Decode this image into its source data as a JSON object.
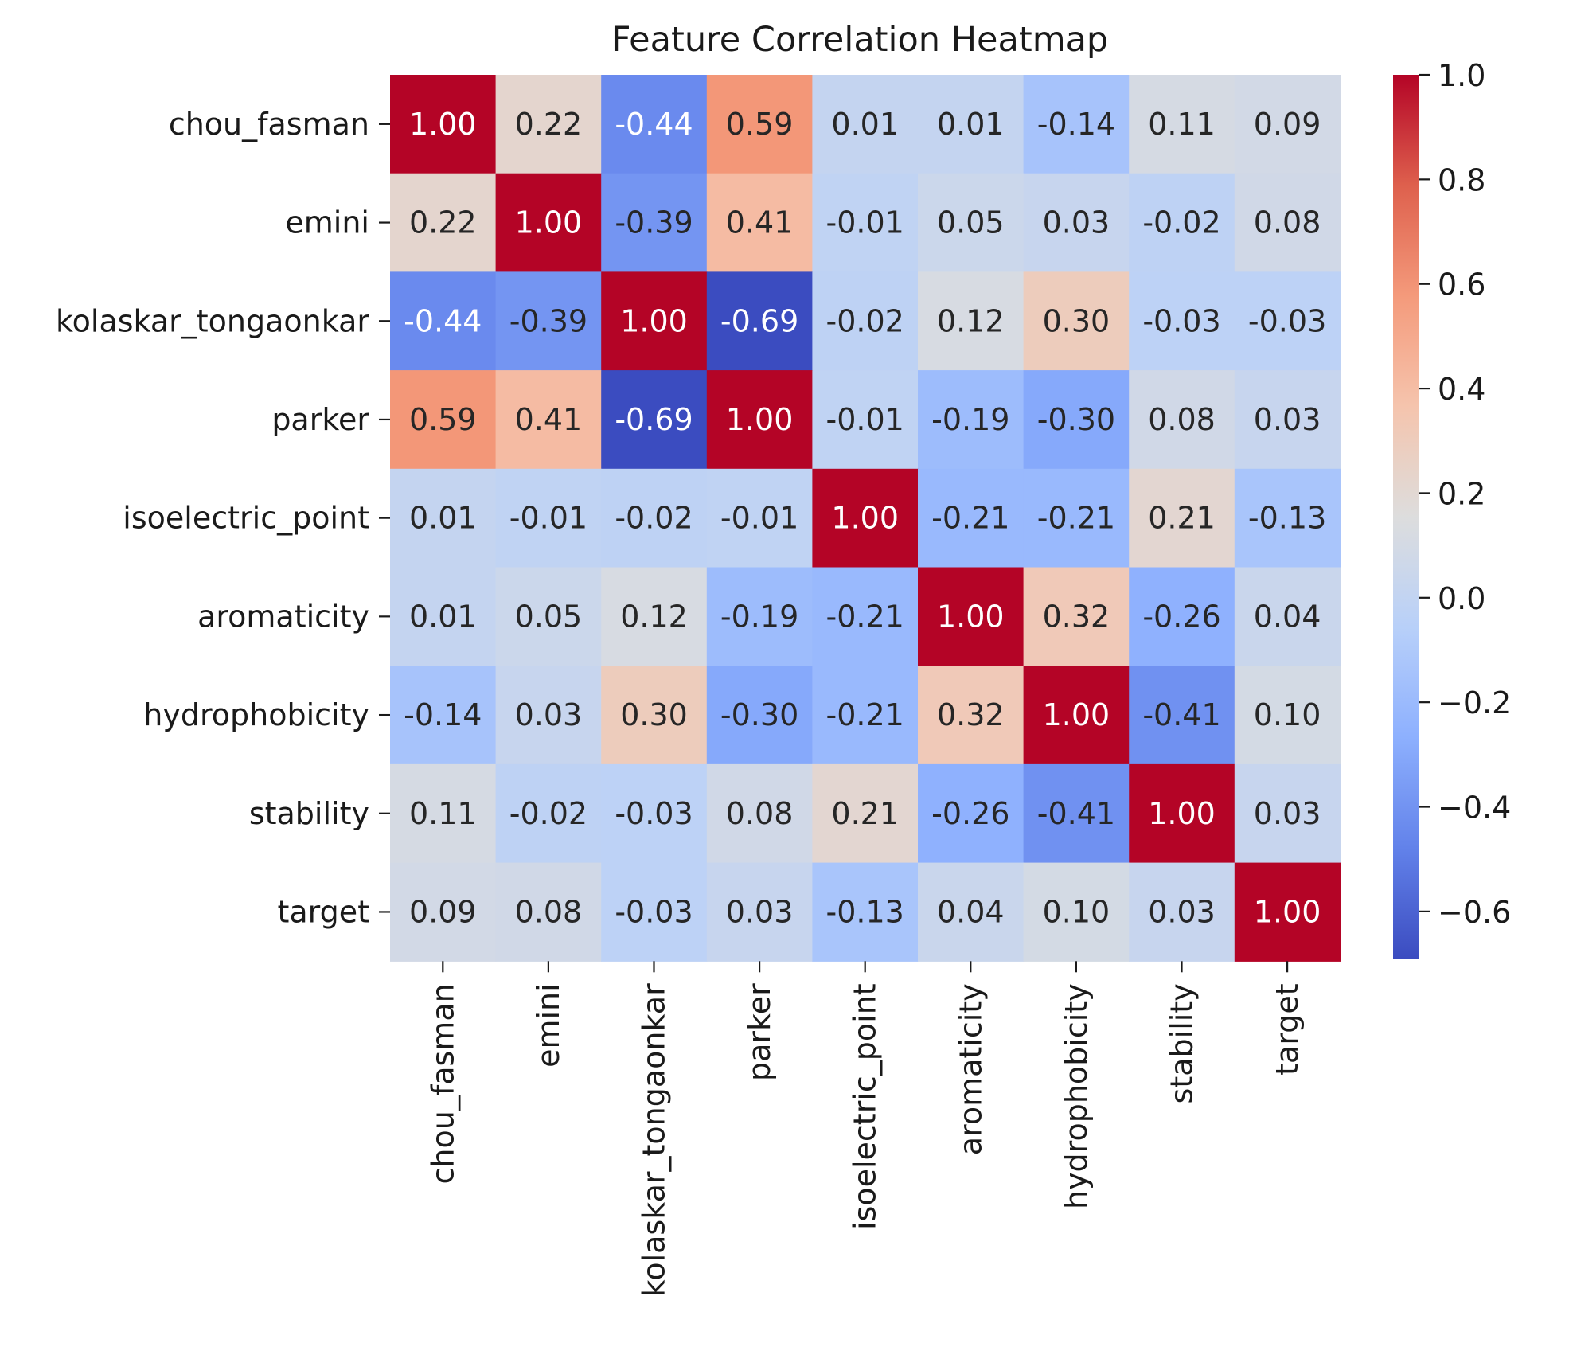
{
  "chart_data": {
    "type": "heatmap",
    "title": "Feature Correlation Heatmap",
    "xlabel": "",
    "ylabel": "",
    "row_labels": [
      "chou_fasman",
      "emini",
      "kolaskar_tongaonkar",
      "parker",
      "isoelectric_point",
      "aromaticity",
      "hydrophobicity",
      "stability",
      "target"
    ],
    "col_labels": [
      "chou_fasman",
      "emini",
      "kolaskar_tongaonkar",
      "parker",
      "isoelectric_point",
      "aromaticity",
      "hydrophobicity",
      "stability",
      "target"
    ],
    "values": [
      [
        1.0,
        0.22,
        -0.44,
        0.59,
        0.01,
        0.01,
        -0.14,
        0.11,
        0.09
      ],
      [
        0.22,
        1.0,
        -0.39,
        0.41,
        -0.01,
        0.05,
        0.03,
        -0.02,
        0.08
      ],
      [
        -0.44,
        -0.39,
        1.0,
        -0.69,
        -0.02,
        0.12,
        0.3,
        -0.03,
        -0.03
      ],
      [
        0.59,
        0.41,
        -0.69,
        1.0,
        -0.01,
        -0.19,
        -0.3,
        0.08,
        0.03
      ],
      [
        0.01,
        -0.01,
        -0.02,
        -0.01,
        1.0,
        -0.21,
        -0.21,
        0.21,
        -0.13
      ],
      [
        0.01,
        0.05,
        0.12,
        -0.19,
        -0.21,
        1.0,
        0.32,
        -0.26,
        0.04
      ],
      [
        -0.14,
        0.03,
        0.3,
        -0.3,
        -0.21,
        0.32,
        1.0,
        -0.41,
        0.1
      ],
      [
        0.11,
        -0.02,
        -0.03,
        0.08,
        0.21,
        -0.26,
        -0.41,
        1.0,
        0.03
      ],
      [
        0.09,
        0.08,
        -0.03,
        0.03,
        -0.13,
        0.04,
        0.1,
        0.03,
        1.0
      ]
    ],
    "value_format": "2 decimals",
    "colormap": "coolwarm",
    "colorbar": {
      "range": [
        -0.69,
        1.0
      ],
      "ticks": [
        -0.6,
        -0.4,
        -0.2,
        0.0,
        0.2,
        0.4,
        0.6,
        0.8,
        1.0
      ],
      "tick_labels": [
        "−0.6",
        "−0.4",
        "−0.2",
        "0.0",
        "0.2",
        "0.4",
        "0.6",
        "0.8",
        "1.0"
      ]
    },
    "grid": false,
    "legend": "colorbar-right"
  }
}
